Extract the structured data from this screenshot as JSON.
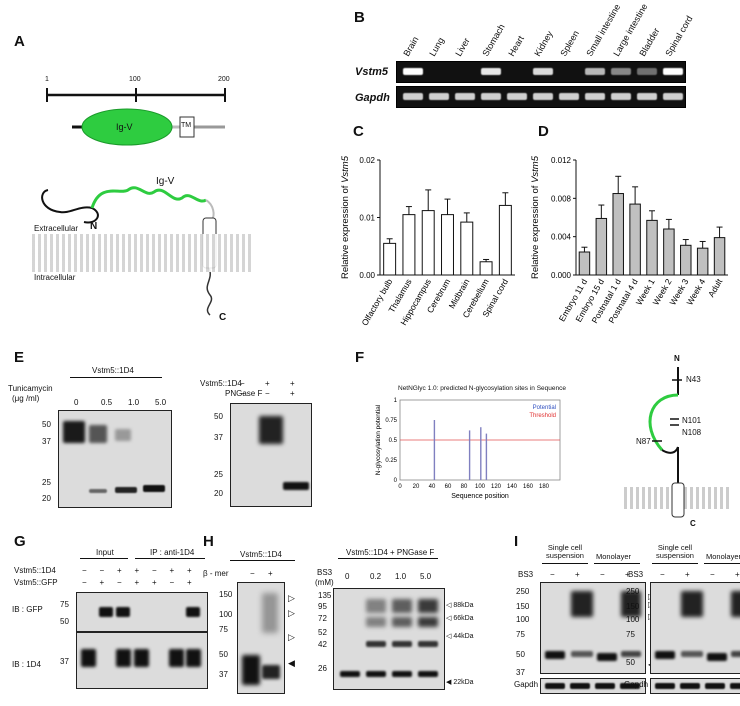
{
  "panels": {
    "a": {
      "label": "A",
      "scale": [
        "1",
        "100",
        "200"
      ],
      "domain_igv": "Ig-V",
      "domain_tm": "TM",
      "topology_igv": "Ig-V",
      "n_term": "N",
      "c_term": "C",
      "extracellular": "Extracellular",
      "intracellular": "Intracellular"
    },
    "b": {
      "label": "B",
      "tissues": [
        "Brain",
        "Lung",
        "Liver",
        "Stomach",
        "Heart",
        "Kidney",
        "Spleen",
        "Small intestine",
        "Large intestine",
        "Bladder",
        "Spinal cord"
      ],
      "gene1": "Vstm5",
      "gene2": "Gapdh"
    },
    "c": {
      "label": "C",
      "ylabel": "Relative  expression of Vstm5",
      "ytick_labels": [
        "0.00",
        "0.01",
        "0.02"
      ]
    },
    "d": {
      "label": "D",
      "ylabel": "Relative  expression of Vstm5",
      "ytick_labels": [
        "0.000",
        "0.004",
        "0.008",
        "0.012"
      ]
    },
    "e": {
      "label": "E",
      "left_title": "Vstm5::1D4",
      "tunicamycin": "Tunicamycin",
      "unit": "(μg /ml)",
      "doses": [
        "0",
        "0.5",
        "1.0",
        "5.0"
      ],
      "mw_left": [
        "50",
        "37",
        "25",
        "20"
      ],
      "right_row1": "Vstm5::1D4",
      "right_row1_vals": [
        "−",
        "+",
        "+"
      ],
      "right_row2": "PNGase F",
      "right_row2_vals": [
        "−",
        "−",
        "+"
      ],
      "mw_right": [
        "50",
        "37",
        "25",
        "20"
      ]
    },
    "f": {
      "label": "F",
      "title": "NetNGlyc 1.0: predicted N-glycosylation sites in Sequence",
      "ylabel": "N-glycosylation potential",
      "xlabel": "Sequence position",
      "legend_potential": "Potential",
      "legend_threshold": "Threshold",
      "xtick_labels": [
        "0",
        "20",
        "40",
        "60",
        "80",
        "100",
        "120",
        "140",
        "160",
        "180"
      ],
      "ytick_labels": [
        "0",
        "0.25",
        "0.5",
        "0.75",
        "1"
      ],
      "topology_n": "N",
      "topology_c": "C",
      "sites": [
        "N43",
        "N87",
        "N101",
        "N108"
      ]
    },
    "g": {
      "label": "G",
      "input": "Input",
      "ip": "IP : anti-1D4",
      "row1": "Vstm5::1D4",
      "row1_vals": [
        "−",
        "−",
        "+",
        "+",
        "−",
        "+",
        "+"
      ],
      "row2": "Vstm5::GFP",
      "row2_vals": [
        "−",
        "+",
        "−",
        "+",
        "+",
        "−",
        "+"
      ],
      "ib1": "IB : GFP",
      "ib2": "IB : 1D4",
      "mw1": [
        "75",
        "50"
      ],
      "mw2": [
        "37"
      ]
    },
    "h": {
      "label": "H",
      "left_title": "Vstm5::1D4",
      "bmer": "β - mer",
      "bmer_vals": [
        "−",
        "+"
      ],
      "mw_left": [
        "150",
        "100",
        "75",
        "50",
        "37"
      ],
      "right_title": "Vstm5::1D4 + PNGase F",
      "bs3": "BS3",
      "bs3_unit": "(mM)",
      "bs3_doses": [
        "0",
        "0.2",
        "1.0",
        "5.0"
      ],
      "mw_right": [
        "135",
        "95",
        "72",
        "52",
        "42",
        "26"
      ],
      "size_labels": [
        "88kDa",
        "66kDa",
        "44kDa",
        "22kDa"
      ]
    },
    "i": {
      "label": "I",
      "col1": "Single cell suspension",
      "col2": "Monolayer",
      "bs3": "BS3",
      "bs3_vals": [
        "−",
        "+",
        "−",
        "+"
      ],
      "mw_left": [
        "250",
        "150",
        "100",
        "75",
        "50",
        "37"
      ],
      "mw_right": [
        "250",
        "150",
        "100",
        "75",
        "50"
      ],
      "gapdh": "Gapdh"
    }
  },
  "chart_data": [
    {
      "type": "bar",
      "panel": "C",
      "categories": [
        "Olfactory bulb",
        "Thalamus",
        "Hippocampus",
        "Cerebrum",
        "Midbrain",
        "Cerebellum",
        "Spinal cord"
      ],
      "values": [
        0.0055,
        0.0105,
        0.0112,
        0.0105,
        0.0092,
        0.0023,
        0.0121
      ],
      "errors": [
        0.0008,
        0.0014,
        0.0036,
        0.0027,
        0.0016,
        0.0004,
        0.0022
      ],
      "ylabel": "Relative  expression of Vstm5",
      "ylim": [
        0,
        0.02
      ],
      "color": "#ffffff"
    },
    {
      "type": "bar",
      "panel": "D",
      "categories": [
        "Embryo 11 d",
        "Embryo 15 d",
        "Postnatal 1 d",
        "Postnatal 4 d",
        "Week 1",
        "Week 2",
        "Week 3",
        "Week 4",
        "Adult"
      ],
      "values": [
        0.0024,
        0.0059,
        0.0085,
        0.0074,
        0.0057,
        0.0048,
        0.0031,
        0.0028,
        0.0039
      ],
      "errors": [
        0.0005,
        0.0014,
        0.0018,
        0.0018,
        0.001,
        0.001,
        0.0006,
        0.0007,
        0.0011
      ],
      "ylabel": "Relative  expression of Vstm5",
      "ylim": [
        0,
        0.012
      ],
      "color": "#c0c0c0"
    },
    {
      "type": "bar",
      "panel": "F",
      "categories": [
        "43",
        "87",
        "101",
        "108"
      ],
      "x": [
        43,
        87,
        101,
        108
      ],
      "values": [
        0.75,
        0.62,
        0.66,
        0.58
      ],
      "threshold": 0.5,
      "xlim": [
        0,
        200
      ],
      "ylim": [
        0,
        1
      ],
      "potential_color": "#8080c0",
      "threshold_color": "#e05050"
    }
  ]
}
